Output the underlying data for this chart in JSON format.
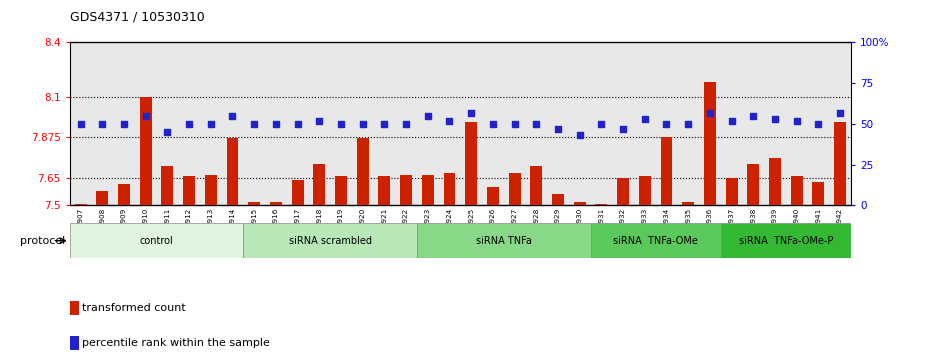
{
  "title": "GDS4371 / 10530310",
  "samples": [
    "GSM790907",
    "GSM790908",
    "GSM790909",
    "GSM790910",
    "GSM790911",
    "GSM790912",
    "GSM790913",
    "GSM790914",
    "GSM790915",
    "GSM790916",
    "GSM790917",
    "GSM790918",
    "GSM790919",
    "GSM790920",
    "GSM790921",
    "GSM790922",
    "GSM790923",
    "GSM790924",
    "GSM790925",
    "GSM790926",
    "GSM790927",
    "GSM790928",
    "GSM790929",
    "GSM790930",
    "GSM790931",
    "GSM790932",
    "GSM790933",
    "GSM790934",
    "GSM790935",
    "GSM790936",
    "GSM790937",
    "GSM790938",
    "GSM790939",
    "GSM790940",
    "GSM790941",
    "GSM790942"
  ],
  "red_values": [
    7.51,
    7.58,
    7.62,
    8.1,
    7.72,
    7.66,
    7.67,
    7.87,
    7.52,
    7.52,
    7.64,
    7.73,
    7.66,
    7.87,
    7.66,
    7.67,
    7.67,
    7.68,
    7.96,
    7.6,
    7.68,
    7.72,
    7.56,
    7.52,
    7.51,
    7.65,
    7.66,
    7.88,
    7.52,
    8.18,
    7.65,
    7.73,
    7.76,
    7.66,
    7.63,
    7.96
  ],
  "blue_values": [
    50,
    50,
    50,
    55,
    45,
    50,
    50,
    55,
    50,
    50,
    50,
    52,
    50,
    50,
    50,
    50,
    55,
    52,
    57,
    50,
    50,
    50,
    47,
    43,
    50,
    47,
    53,
    50,
    50,
    57,
    52,
    55,
    53,
    52,
    50,
    57
  ],
  "groups": [
    {
      "label": "control",
      "start": 0,
      "end": 8,
      "color": "#e0f4e0"
    },
    {
      "label": "siRNA scrambled",
      "start": 8,
      "end": 16,
      "color": "#b8e8b8"
    },
    {
      "label": "siRNA TNFa",
      "start": 16,
      "end": 24,
      "color": "#88d888"
    },
    {
      "label": "siRNA  TNFa-OMe",
      "start": 24,
      "end": 30,
      "color": "#5ac85a"
    },
    {
      "label": "siRNA  TNFa-OMe-P",
      "start": 30,
      "end": 36,
      "color": "#33b833"
    }
  ],
  "ylim_left": [
    7.5,
    8.4
  ],
  "ylim_right": [
    0,
    100
  ],
  "yticks_left": [
    7.5,
    7.65,
    7.875,
    8.1,
    8.4
  ],
  "yticks_left_labels": [
    "7.5",
    "7.65",
    "7.875",
    "8.1",
    "8.4"
  ],
  "yticks_right": [
    0,
    25,
    50,
    75,
    100
  ],
  "yticks_right_labels": [
    "0",
    "25",
    "50",
    "75",
    "100%"
  ],
  "hlines": [
    8.1,
    7.875,
    7.65
  ],
  "bar_color": "#cc2200",
  "blue_color": "#2222cc",
  "bar_width": 0.55,
  "bg_color": "#e8e8e8",
  "legend_tc": "transformed count",
  "legend_pr": "percentile rank within the sample",
  "protocol_label": "protocol"
}
